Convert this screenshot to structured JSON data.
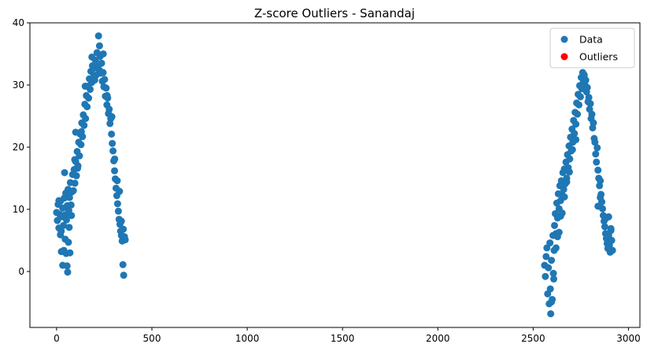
{
  "chart_data": {
    "type": "scatter",
    "title": "Z-score Outliers - Sanandaj",
    "xlabel": "",
    "ylabel": "",
    "xlim": [
      -140,
      3060
    ],
    "ylim": [
      -9,
      40
    ],
    "xticks": [
      0,
      500,
      1000,
      1500,
      2000,
      2500,
      3000
    ],
    "yticks": [
      0,
      10,
      20,
      30,
      40
    ],
    "xtick_labels": [
      "0",
      "500",
      "1000",
      "1500",
      "2000",
      "2500",
      "3000"
    ],
    "ytick_labels": [
      "0",
      "10",
      "20",
      "30",
      "40"
    ],
    "grid": false,
    "legend_position": "top-right",
    "series": [
      {
        "name": "Data",
        "color": "#1f77b4",
        "points": [
          [
            0,
            9.5
          ],
          [
            4,
            8.2
          ],
          [
            8,
            10.8
          ],
          [
            12,
            7.0
          ],
          [
            16,
            9.2
          ],
          [
            20,
            11.3
          ],
          [
            24,
            6.5
          ],
          [
            28,
            8.8
          ],
          [
            32,
            10.2
          ],
          [
            36,
            7.4
          ],
          [
            40,
            11.8
          ],
          [
            44,
            9.1
          ],
          [
            48,
            12.6
          ],
          [
            52,
            8.3
          ],
          [
            56,
            10.6
          ],
          [
            60,
            13.2
          ],
          [
            64,
            9.8
          ],
          [
            68,
            11.9
          ],
          [
            72,
            14.3
          ],
          [
            76,
            10.7
          ],
          [
            80,
            12.8
          ],
          [
            84,
            15.6
          ],
          [
            88,
            13.0
          ],
          [
            92,
            16.4
          ],
          [
            96,
            14.2
          ],
          [
            100,
            17.7
          ],
          [
            104,
            15.4
          ],
          [
            108,
            19.3
          ],
          [
            112,
            17.0
          ],
          [
            116,
            20.8
          ],
          [
            120,
            18.6
          ],
          [
            124,
            22.1
          ],
          [
            128,
            20.4
          ],
          [
            132,
            23.9
          ],
          [
            136,
            21.7
          ],
          [
            140,
            25.2
          ],
          [
            144,
            23.5
          ],
          [
            148,
            26.9
          ],
          [
            152,
            24.6
          ],
          [
            156,
            28.3
          ],
          [
            160,
            26.5
          ],
          [
            164,
            29.8
          ],
          [
            168,
            27.9
          ],
          [
            172,
            31.0
          ],
          [
            176,
            29.3
          ],
          [
            180,
            32.2
          ],
          [
            184,
            30.4
          ],
          [
            188,
            33.1
          ],
          [
            192,
            31.2
          ],
          [
            196,
            32.7
          ],
          [
            200,
            30.8
          ],
          [
            204,
            34.0
          ],
          [
            208,
            31.6
          ],
          [
            212,
            35.2
          ],
          [
            216,
            33.0
          ],
          [
            220,
            37.9
          ],
          [
            224,
            32.4
          ],
          [
            228,
            34.6
          ],
          [
            232,
            31.9
          ],
          [
            236,
            33.5
          ],
          [
            240,
            30.6
          ],
          [
            244,
            32.0
          ],
          [
            248,
            29.7
          ],
          [
            252,
            30.9
          ],
          [
            256,
            28.2
          ],
          [
            260,
            29.5
          ],
          [
            264,
            26.8
          ],
          [
            268,
            27.9
          ],
          [
            272,
            25.4
          ],
          [
            276,
            26.1
          ],
          [
            280,
            23.8
          ],
          [
            284,
            24.6
          ],
          [
            288,
            22.1
          ],
          [
            292,
            20.6
          ],
          [
            296,
            19.4
          ],
          [
            300,
            17.8
          ],
          [
            304,
            16.2
          ],
          [
            308,
            14.9
          ],
          [
            312,
            13.4
          ],
          [
            316,
            12.2
          ],
          [
            320,
            10.9
          ],
          [
            324,
            9.7
          ],
          [
            328,
            8.4
          ],
          [
            332,
            7.6
          ],
          [
            336,
            6.5
          ],
          [
            340,
            5.8
          ],
          [
            344,
            4.9
          ],
          [
            348,
            1.1
          ],
          [
            352,
            -0.6
          ],
          [
            356,
            5.6
          ],
          [
            25,
            3.2
          ],
          [
            32,
            1.0
          ],
          [
            38,
            3.4
          ],
          [
            45,
            5.2
          ],
          [
            50,
            2.9
          ],
          [
            55,
            0.9
          ],
          [
            58,
            -0.1
          ],
          [
            62,
            4.7
          ],
          [
            66,
            7.1
          ],
          [
            70,
            3.0
          ],
          [
            95,
            18.0
          ],
          [
            110,
            16.6
          ],
          [
            130,
            22.5
          ],
          [
            150,
            29.8
          ],
          [
            185,
            34.5
          ],
          [
            225,
            36.3
          ],
          [
            245,
            35.0
          ],
          [
            265,
            28.3
          ],
          [
            290,
            24.9
          ],
          [
            305,
            18.1
          ],
          [
            318,
            14.6
          ],
          [
            330,
            12.9
          ],
          [
            340,
            8.1
          ],
          [
            350,
            6.8
          ],
          [
            360,
            5.1
          ],
          [
            12,
            11.4
          ],
          [
            20,
            5.9
          ],
          [
            42,
            15.9
          ],
          [
            78,
            9.0
          ],
          [
            100,
            22.4
          ],
          [
            2560,
            1.0
          ],
          [
            2564,
            -0.8
          ],
          [
            2568,
            2.4
          ],
          [
            2572,
            3.8
          ],
          [
            2576,
            -3.6
          ],
          [
            2580,
            0.6
          ],
          [
            2584,
            -5.2
          ],
          [
            2588,
            4.6
          ],
          [
            2592,
            -6.8
          ],
          [
            2596,
            1.8
          ],
          [
            2600,
            -4.5
          ],
          [
            2604,
            5.8
          ],
          [
            2608,
            -1.2
          ],
          [
            2612,
            7.4
          ],
          [
            2616,
            9.3
          ],
          [
            2620,
            6.1
          ],
          [
            2624,
            11.0
          ],
          [
            2628,
            8.6
          ],
          [
            2632,
            12.5
          ],
          [
            2636,
            10.1
          ],
          [
            2640,
            13.8
          ],
          [
            2644,
            11.4
          ],
          [
            2648,
            14.6
          ],
          [
            2652,
            12.3
          ],
          [
            2656,
            15.9
          ],
          [
            2660,
            13.2
          ],
          [
            2664,
            16.5
          ],
          [
            2668,
            14.1
          ],
          [
            2672,
            17.6
          ],
          [
            2676,
            15.0
          ],
          [
            2680,
            18.8
          ],
          [
            2684,
            16.7
          ],
          [
            2688,
            20.2
          ],
          [
            2692,
            18.1
          ],
          [
            2696,
            21.6
          ],
          [
            2700,
            19.4
          ],
          [
            2704,
            22.9
          ],
          [
            2708,
            20.8
          ],
          [
            2712,
            24.3
          ],
          [
            2716,
            22.2
          ],
          [
            2720,
            25.6
          ],
          [
            2724,
            23.7
          ],
          [
            2728,
            27.1
          ],
          [
            2732,
            25.3
          ],
          [
            2736,
            28.5
          ],
          [
            2740,
            26.8
          ],
          [
            2744,
            29.9
          ],
          [
            2748,
            28.1
          ],
          [
            2752,
            31.2
          ],
          [
            2756,
            29.4
          ],
          [
            2760,
            32.0
          ],
          [
            2764,
            30.5
          ],
          [
            2768,
            31.6
          ],
          [
            2772,
            29.7
          ],
          [
            2776,
            30.8
          ],
          [
            2780,
            28.9
          ],
          [
            2784,
            29.6
          ],
          [
            2788,
            27.3
          ],
          [
            2792,
            28.0
          ],
          [
            2796,
            26.1
          ],
          [
            2800,
            27.0
          ],
          [
            2804,
            24.6
          ],
          [
            2808,
            25.3
          ],
          [
            2812,
            23.1
          ],
          [
            2816,
            23.9
          ],
          [
            2820,
            21.4
          ],
          [
            2824,
            20.8
          ],
          [
            2828,
            18.9
          ],
          [
            2832,
            17.6
          ],
          [
            2836,
            19.9
          ],
          [
            2840,
            16.3
          ],
          [
            2844,
            15.0
          ],
          [
            2848,
            13.8
          ],
          [
            2852,
            14.6
          ],
          [
            2856,
            12.4
          ],
          [
            2860,
            11.2
          ],
          [
            2864,
            10.1
          ],
          [
            2868,
            9.0
          ],
          [
            2872,
            8.1
          ],
          [
            2876,
            7.2
          ],
          [
            2880,
            6.1
          ],
          [
            2884,
            5.3
          ],
          [
            2888,
            4.5
          ],
          [
            2892,
            3.7
          ],
          [
            2896,
            5.8
          ],
          [
            2900,
            4.2
          ],
          [
            2904,
            3.1
          ],
          [
            2908,
            6.6
          ],
          [
            2912,
            5.0
          ],
          [
            2916,
            3.4
          ],
          [
            2620,
            3.8
          ],
          [
            2628,
            5.6
          ],
          [
            2636,
            6.3
          ],
          [
            2644,
            8.9
          ],
          [
            2652,
            9.4
          ],
          [
            2664,
            12.0
          ],
          [
            2676,
            14.4
          ],
          [
            2690,
            16.0
          ],
          [
            2706,
            19.6
          ],
          [
            2724,
            21.2
          ],
          [
            2590,
            -2.8
          ],
          [
            2596,
            -4.9
          ],
          [
            2606,
            -0.3
          ],
          [
            2610,
            3.4
          ],
          [
            2884,
            8.6
          ],
          [
            2896,
            8.8
          ],
          [
            2908,
            6.9
          ],
          [
            2852,
            11.9
          ],
          [
            2840,
            10.5
          ],
          [
            2770,
            30.3
          ]
        ]
      },
      {
        "name": "Outliers",
        "color": "#ff0000",
        "points": []
      }
    ]
  }
}
